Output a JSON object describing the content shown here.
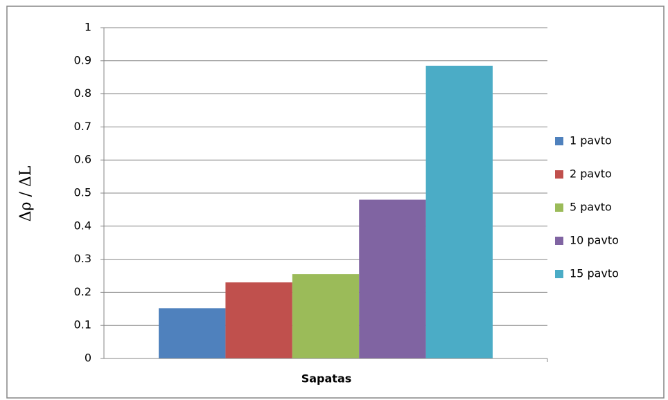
{
  "chart_data": {
    "type": "bar",
    "y_label": "Δρ / ΔL",
    "categories": [
      "Sapatas"
    ],
    "series": [
      {
        "name": "1 pavto",
        "color": "#4f81bd",
        "values": [
          0.152
        ]
      },
      {
        "name": "2 pavto",
        "color": "#c0504d",
        "values": [
          0.23
        ]
      },
      {
        "name": "5 pavto",
        "color": "#9bbb59",
        "values": [
          0.255
        ]
      },
      {
        "name": "10 pavto",
        "color": "#8064a2",
        "values": [
          0.48
        ]
      },
      {
        "name": "15 pavto",
        "color": "#4bacc6",
        "values": [
          0.885
        ]
      }
    ],
    "ylim": [
      0,
      1
    ],
    "yticks": [
      0,
      0.1,
      0.2,
      0.3,
      0.4,
      0.5,
      0.6,
      0.7,
      0.8,
      0.9,
      1
    ],
    "grid": true,
    "legend": "right"
  }
}
